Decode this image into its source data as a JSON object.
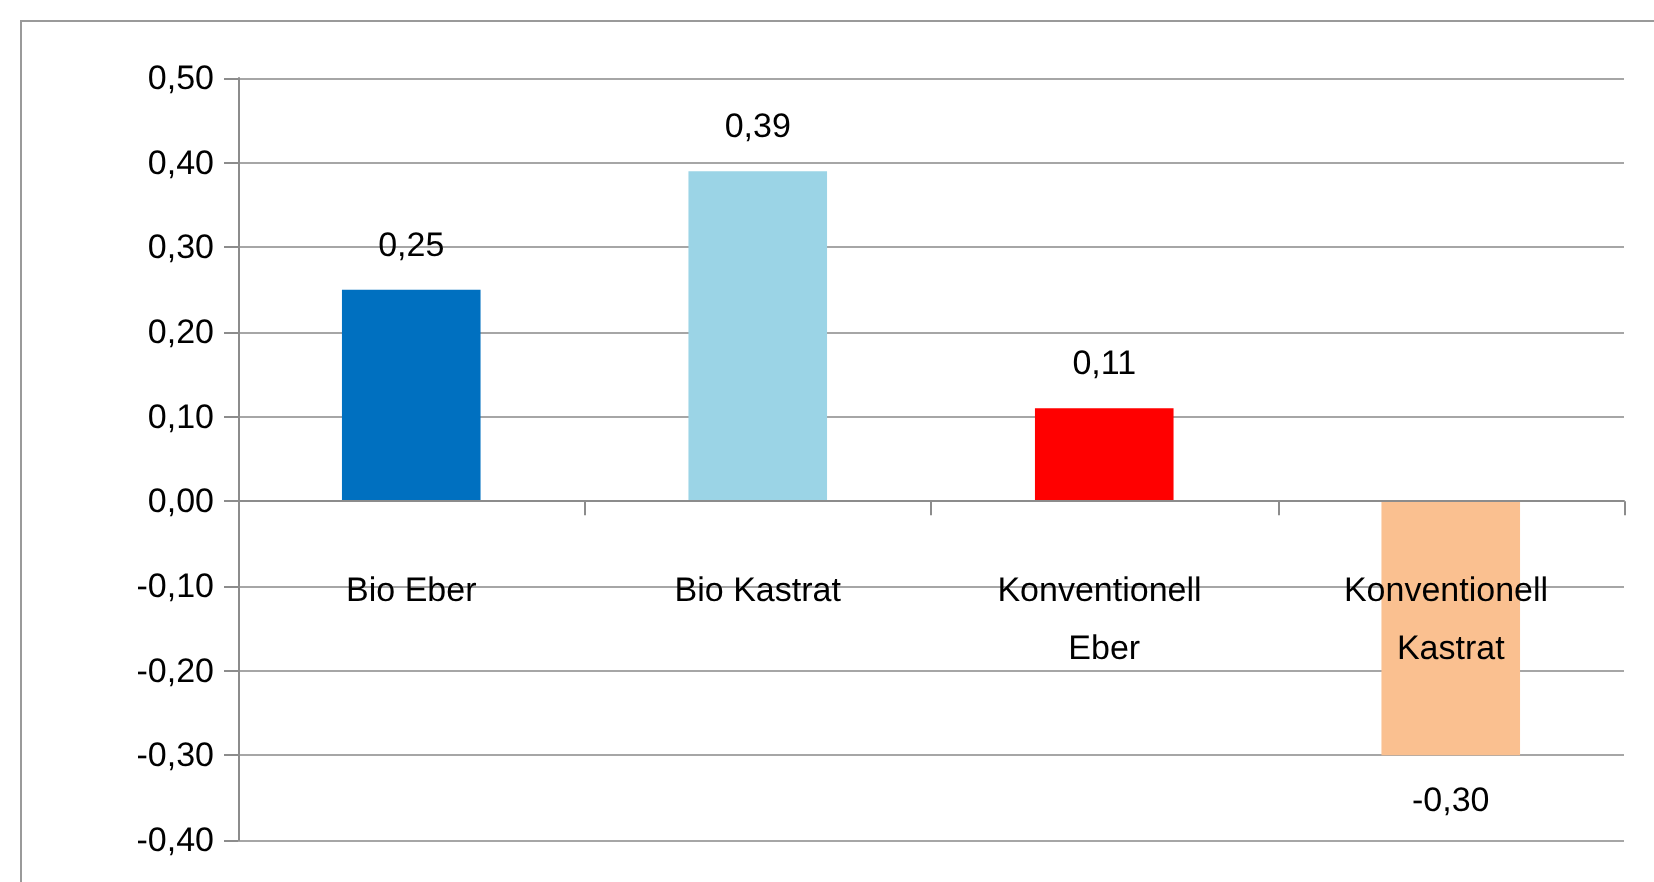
{
  "chart_data": {
    "type": "bar",
    "categories": [
      "Bio Eber",
      "Bio Kastrat",
      "Konventionell Eber",
      "Konventionell Kastrat"
    ],
    "values": [
      0.25,
      0.39,
      0.11,
      -0.3
    ],
    "colors": [
      "#0070c0",
      "#9bd4e6",
      "#ff0000",
      "#fac090"
    ],
    "value_labels": [
      "0,25",
      "0,39",
      "0,11",
      "-0,30"
    ],
    "ylim": [
      -0.4,
      0.5
    ],
    "yticks": [
      {
        "value": -0.4,
        "label": "-0,40"
      },
      {
        "value": -0.3,
        "label": "-0,30"
      },
      {
        "value": -0.2,
        "label": "-0,20"
      },
      {
        "value": -0.1,
        "label": "-0,10"
      },
      {
        "value": 0,
        "label": "0,00"
      },
      {
        "value": 0.1,
        "label": "0,10"
      },
      {
        "value": 0.2,
        "label": "0,20"
      },
      {
        "value": 0.3,
        "label": "0,30"
      },
      {
        "value": 0.4,
        "label": "0,40"
      },
      {
        "value": 0.5,
        "label": "0,50"
      }
    ],
    "grid": "y"
  }
}
